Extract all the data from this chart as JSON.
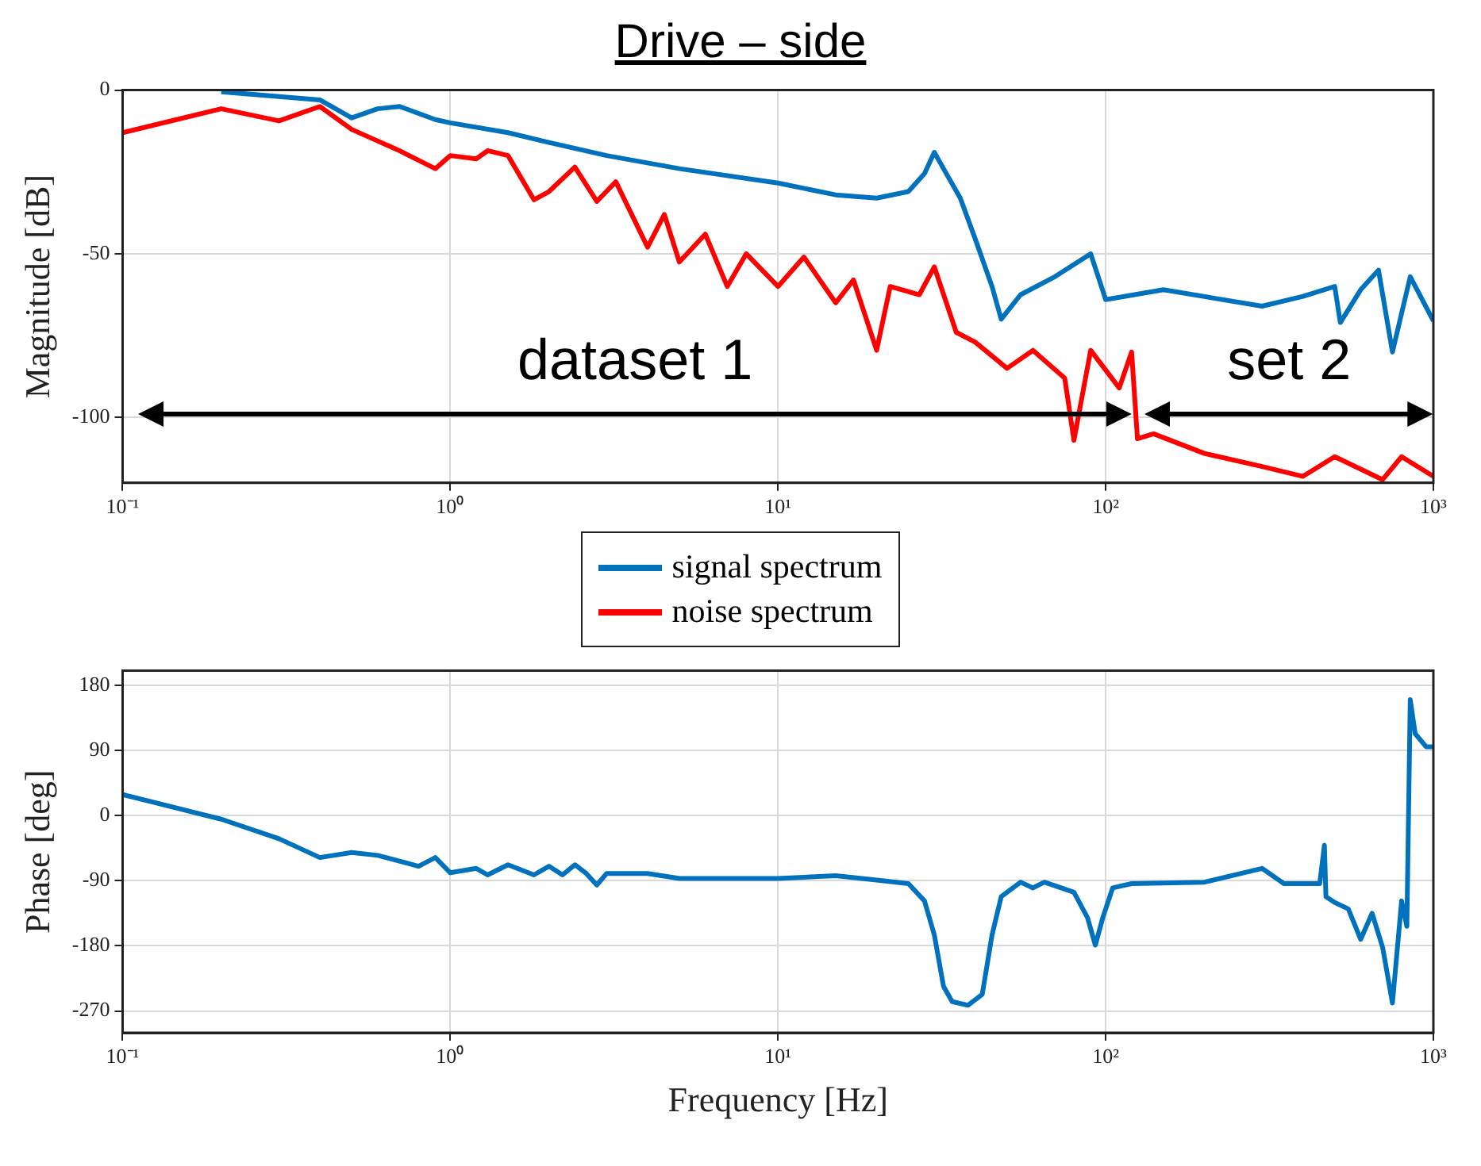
{
  "chart_data": [
    {
      "type": "line",
      "title": "Drive – side",
      "ylabel": "Magnitude [dB]",
      "log": "x",
      "grid": true,
      "legend": "bottom",
      "xlim": [
        0.1,
        1000
      ],
      "ylim": [
        -120,
        0
      ],
      "xticks": [
        {
          "value": 0.1,
          "label": "10⁻¹"
        },
        {
          "value": 1,
          "label": "10⁰"
        },
        {
          "value": 10,
          "label": "10¹"
        },
        {
          "value": 100,
          "label": "10²"
        },
        {
          "value": 1000,
          "label": "10³"
        }
      ],
      "yticks": [
        -100,
        -50,
        0
      ],
      "annotations": [
        "dataset 1",
        "set 2"
      ],
      "series": [
        {
          "name": "signal spectrum",
          "color": "#0072bd",
          "x": [
            0.2,
            0.4,
            0.5,
            0.6,
            0.7,
            0.9,
            1,
            1.5,
            2,
            3,
            5,
            10,
            15,
            20,
            25,
            28,
            30,
            32,
            36,
            40,
            45,
            48,
            55,
            70,
            90,
            100,
            150,
            300,
            400,
            500,
            520,
            600,
            680,
            750,
            850,
            1000
          ],
          "values": [
            -0.5,
            -3,
            -8.5,
            -5.7,
            -5,
            -9,
            -10,
            -13,
            -16,
            -20,
            -24,
            -28.4,
            -32,
            -33,
            -31,
            -25.5,
            -19,
            -24,
            -33,
            -45.5,
            -60,
            -70,
            -62.5,
            -57,
            -50,
            -64,
            -61,
            -66,
            -63,
            -60,
            -71,
            -61,
            -55,
            -80,
            -57,
            -70.5
          ]
        },
        {
          "name": "noise spectrum",
          "color": "#ff0000",
          "x": [
            0.1,
            0.2,
            0.3,
            0.4,
            0.5,
            0.7,
            0.9,
            1,
            1.2,
            1.3,
            1.5,
            1.8,
            2,
            2.4,
            2.8,
            3.2,
            4,
            4.5,
            5,
            6,
            7,
            8,
            10,
            12,
            15,
            17,
            20,
            22,
            27,
            30,
            35,
            40,
            50,
            60,
            75,
            80,
            90,
            110,
            120,
            125,
            140,
            200,
            300,
            400,
            500,
            700,
            800,
            1000
          ],
          "values": [
            -13,
            -5.7,
            -9.4,
            -5,
            -12,
            -18.5,
            -24,
            -20,
            -21,
            -18.5,
            -20,
            -33.5,
            -31,
            -23.5,
            -34,
            -28,
            -48,
            -38,
            -52.5,
            -44,
            -60,
            -50,
            -60,
            -51,
            -65,
            -58,
            -79.5,
            -60,
            -62.5,
            -54,
            -74,
            -77,
            -85,
            -79.5,
            -88,
            -107,
            -79.5,
            -91,
            -80,
            -106.5,
            -105,
            -111,
            -115,
            -118,
            -112,
            -119,
            -112,
            -118
          ]
        }
      ]
    },
    {
      "type": "line",
      "xlabel": "Frequency [Hz]",
      "ylabel": "Phase [deg]",
      "log": "x",
      "grid": true,
      "xlim": [
        0.1,
        1000
      ],
      "ylim": [
        -300,
        200
      ],
      "xticks": [
        {
          "value": 0.1,
          "label": "10⁻¹"
        },
        {
          "value": 1,
          "label": "10⁰"
        },
        {
          "value": 10,
          "label": "10¹"
        },
        {
          "value": 100,
          "label": "10²"
        },
        {
          "value": 1000,
          "label": "10³"
        }
      ],
      "yticks": [
        -270,
        -180,
        -90,
        0,
        90,
        180
      ],
      "series": [
        {
          "color": "#0072bd",
          "x": [
            0.1,
            0.2,
            0.3,
            0.4,
            0.5,
            0.6,
            0.8,
            0.9,
            1,
            1.2,
            1.3,
            1.5,
            1.8,
            2,
            2.2,
            2.4,
            2.6,
            2.8,
            3,
            4,
            5,
            10,
            15,
            20,
            25,
            28,
            30,
            32,
            34,
            38,
            42,
            45,
            48,
            55,
            60,
            65,
            80,
            88,
            93,
            98,
            105,
            120,
            200,
            300,
            350,
            450,
            465,
            470,
            500,
            550,
            600,
            650,
            700,
            750,
            800,
            830,
            850,
            880,
            950,
            1000
          ],
          "values": [
            29,
            -5,
            -32,
            -58,
            -51,
            -55,
            -70,
            -58,
            -79,
            -73,
            -82,
            -68,
            -82,
            -70,
            -82,
            -68,
            -80,
            -96,
            -80,
            -80,
            -87,
            -87,
            -83,
            -89,
            -94,
            -118,
            -165,
            -236,
            -257,
            -262,
            -247,
            -165,
            -112,
            -92,
            -100,
            -92,
            -106,
            -141,
            -179,
            -141,
            -100,
            -94,
            -92,
            -73,
            -94,
            -94,
            -41,
            -112,
            -120,
            -129,
            -171,
            -135,
            -182,
            -259,
            -118,
            -153,
            160,
            113,
            95,
            95
          ]
        }
      ]
    }
  ]
}
